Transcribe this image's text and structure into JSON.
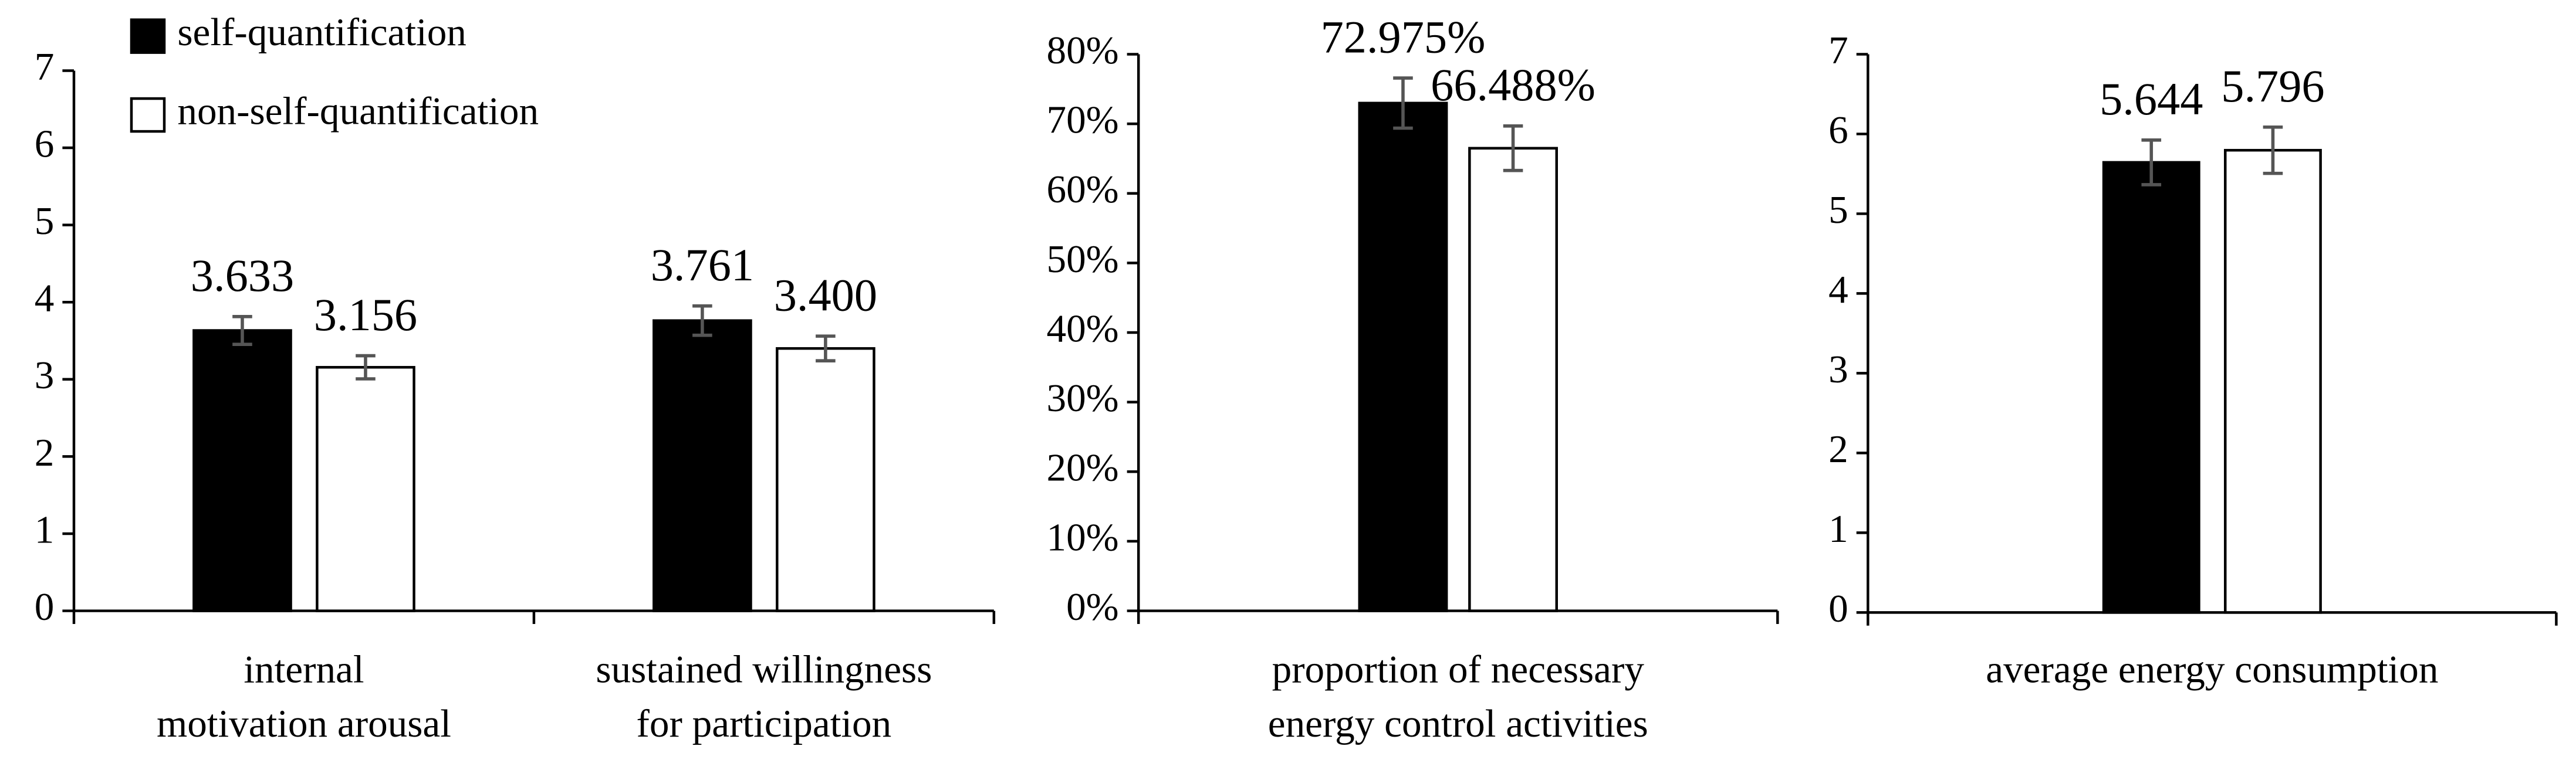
{
  "chart_data": [
    {
      "type": "bar",
      "categories": [
        [
          "internal",
          "motivation arousal"
        ],
        [
          "sustained willingness",
          "for  participation"
        ]
      ],
      "series": [
        {
          "name": "self-quantification",
          "color": "#000000",
          "values": [
            3.633,
            3.761
          ],
          "value_labels": [
            "3.633",
            "3.761"
          ],
          "errors": [
            0.18,
            0.19
          ]
        },
        {
          "name": "non-self-quantification",
          "color": "#ffffff",
          "values": [
            3.156,
            3.4
          ],
          "value_labels": [
            "3.156",
            "3.400"
          ],
          "errors": [
            0.15,
            0.16
          ]
        }
      ],
      "ylim": [
        0,
        7
      ],
      "yticks": [
        0,
        1,
        2,
        3,
        4,
        5,
        6,
        7
      ],
      "legend": "upper left"
    },
    {
      "type": "bar",
      "categories": [
        [
          "proportion of necessary",
          "energy control activities"
        ]
      ],
      "series": [
        {
          "color": "#000000",
          "values": [
            72.975
          ],
          "value_labels": [
            "72.975%"
          ],
          "errors": [
            3.6
          ]
        },
        {
          "color": "#ffffff",
          "values": [
            66.488
          ],
          "value_labels": [
            "66.488%"
          ],
          "errors": [
            3.2
          ]
        }
      ],
      "ylim": [
        0,
        80
      ],
      "yticks": [
        {
          "value": 0,
          "label": "0%"
        },
        {
          "value": 10,
          "label": "10%"
        },
        {
          "value": 20,
          "label": "20%"
        },
        {
          "value": 30,
          "label": "30%"
        },
        {
          "value": 40,
          "label": "40%"
        },
        {
          "value": 50,
          "label": "50%"
        },
        {
          "value": 60,
          "label": "60%"
        },
        {
          "value": 70,
          "label": "70%"
        },
        {
          "value": 80,
          "label": "80%"
        }
      ]
    },
    {
      "type": "bar",
      "categories": [
        [
          "average energy consumption"
        ]
      ],
      "series": [
        {
          "color": "#000000",
          "values": [
            5.644
          ],
          "value_labels": [
            "5.644"
          ],
          "errors": [
            0.28
          ]
        },
        {
          "color": "#ffffff",
          "values": [
            5.796
          ],
          "value_labels": [
            "5.796"
          ],
          "errors": [
            0.29
          ]
        }
      ],
      "ylim": [
        0,
        7
      ],
      "yticks": [
        0,
        1,
        2,
        3,
        4,
        5,
        6,
        7
      ]
    }
  ]
}
